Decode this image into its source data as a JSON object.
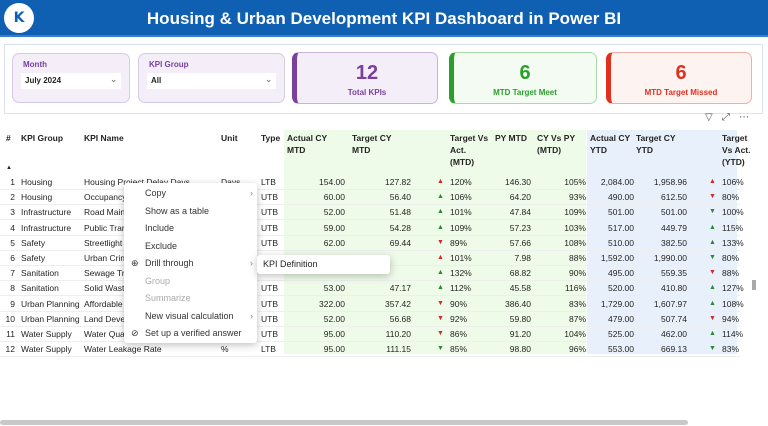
{
  "header": {
    "title": "Housing & Urban Development KPI Dashboard in Power BI",
    "logo_text": "K"
  },
  "slicers": [
    {
      "label": "Month",
      "value": "July 2024"
    },
    {
      "label": "KPI Group",
      "value": "All"
    }
  ],
  "cards": [
    {
      "value": "12",
      "label": "Total KPIs",
      "color": "#7b3fa0"
    },
    {
      "value": "6",
      "label": "MTD Target Meet",
      "color": "#2aa02a"
    },
    {
      "value": "6",
      "label": "MTD Target Missed",
      "color": "#e0301e"
    }
  ],
  "visual_icons": [
    "filter-icon",
    "focus-mode-icon",
    "more-options-icon"
  ],
  "table": {
    "columns": [
      "#",
      "KPI Group",
      "KPI Name",
      "Unit",
      "Type",
      "Actual CY MTD",
      "Target CY MTD",
      "Target Vs Act. (MTD)",
      "PY MTD",
      "CY Vs PY (MTD)",
      "Actual CY YTD",
      "Target CY YTD",
      "Target Vs Act. (YTD)"
    ],
    "sort_indicator": "▲",
    "rows": [
      [
        "1",
        "Housing",
        "Housing Project Delay Days",
        "Days",
        "LTB",
        "154.00",
        "127.82",
        "up-red",
        "120%",
        "146.30",
        "105%",
        "2,084.00",
        "1,958.96",
        "up-red",
        "106%"
      ],
      [
        "2",
        "Housing",
        "Occupancy",
        "",
        "UTB",
        "60.00",
        "56.40",
        "up-green",
        "106%",
        "64.20",
        "93%",
        "490.00",
        "612.50",
        "down-red",
        "80%"
      ],
      [
        "3",
        "Infrastructure",
        "Road Maint",
        "",
        "UTB",
        "52.00",
        "51.48",
        "up-green",
        "101%",
        "47.84",
        "109%",
        "501.00",
        "501.00",
        "down-green",
        "100%"
      ],
      [
        "4",
        "Infrastructure",
        "Public Trans",
        "",
        "UTB",
        "59.00",
        "54.28",
        "up-green",
        "109%",
        "57.23",
        "103%",
        "517.00",
        "449.79",
        "up-green",
        "115%"
      ],
      [
        "5",
        "Safety",
        "Streetlight",
        "",
        "UTB",
        "62.00",
        "69.44",
        "down-red",
        "89%",
        "57.66",
        "108%",
        "510.00",
        "382.50",
        "up-green",
        "133%"
      ],
      [
        "6",
        "Safety",
        "Urban Crim",
        "",
        "",
        "",
        "",
        "up-red",
        "101%",
        "7.98",
        "88%",
        "1,592.00",
        "1,990.00",
        "down-green",
        "80%"
      ],
      [
        "7",
        "Sanitation",
        "Sewage Tre",
        "",
        "",
        "",
        "",
        "up-green",
        "132%",
        "68.82",
        "90%",
        "495.00",
        "559.35",
        "down-red",
        "88%"
      ],
      [
        "8",
        "Sanitation",
        "Solid Waste",
        "",
        "UTB",
        "53.00",
        "47.17",
        "up-green",
        "112%",
        "45.58",
        "116%",
        "520.00",
        "410.80",
        "up-green",
        "127%"
      ],
      [
        "9",
        "Urban Planning",
        "Affordable",
        "",
        "UTB",
        "322.00",
        "357.42",
        "down-red",
        "90%",
        "386.40",
        "83%",
        "1,729.00",
        "1,607.97",
        "up-green",
        "108%"
      ],
      [
        "10",
        "Urban Planning",
        "Land Devel",
        "",
        "UTB",
        "52.00",
        "56.68",
        "down-red",
        "92%",
        "59.80",
        "87%",
        "479.00",
        "507.74",
        "down-red",
        "94%"
      ],
      [
        "11",
        "Water Supply",
        "Water Qual",
        "",
        "UTB",
        "95.00",
        "110.20",
        "down-red",
        "86%",
        "91.20",
        "104%",
        "525.00",
        "462.00",
        "up-green",
        "114%"
      ],
      [
        "12",
        "Water Supply",
        "Water Leakage Rate",
        "%",
        "LTB",
        "95.00",
        "111.15",
        "down-green",
        "85%",
        "98.80",
        "96%",
        "553.00",
        "669.13",
        "down-green",
        "83%"
      ]
    ]
  },
  "context_menu": {
    "items": [
      {
        "label": "Copy",
        "submenu": true,
        "disabled": false,
        "icon": ""
      },
      {
        "label": "Show as a table",
        "submenu": false,
        "disabled": false,
        "icon": ""
      },
      {
        "label": "Include",
        "submenu": false,
        "disabled": false,
        "icon": ""
      },
      {
        "label": "Exclude",
        "submenu": false,
        "disabled": false,
        "icon": ""
      },
      {
        "label": "Drill through",
        "submenu": true,
        "disabled": false,
        "icon": "drill-through-icon"
      },
      {
        "label": "Group",
        "submenu": false,
        "disabled": true,
        "icon": ""
      },
      {
        "label": "Summarize",
        "submenu": false,
        "disabled": true,
        "icon": ""
      },
      {
        "label": "New visual calculation",
        "submenu": true,
        "disabled": false,
        "icon": ""
      },
      {
        "label": "Set up a verified answer",
        "submenu": false,
        "disabled": false,
        "icon": "verified-check-icon"
      }
    ],
    "submenu": {
      "label": "KPI Definition"
    }
  }
}
